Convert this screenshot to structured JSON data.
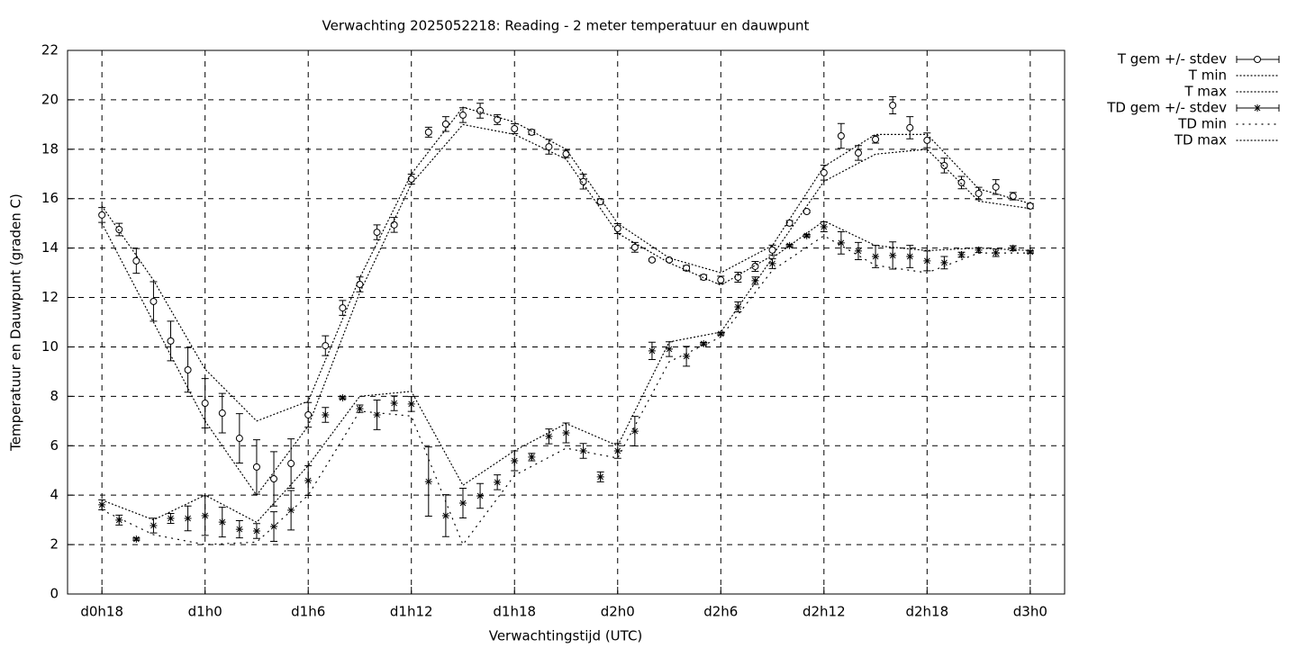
{
  "chart_data": {
    "type": "errorbar",
    "title": "Verwachting 2025052218: Reading - 2 meter temperatuur en dauwpunt",
    "xlabel": "Verwachtingstijd (UTC)",
    "ylabel": "Temperatuur en Dauwpunt (graden C)",
    "xlim": [
      16,
      74
    ],
    "ylim": [
      0,
      22
    ],
    "xticks": [
      {
        "value": 18,
        "label": "d0h18"
      },
      {
        "value": 24,
        "label": "d1h0"
      },
      {
        "value": 30,
        "label": "d1h6"
      },
      {
        "value": 36,
        "label": "d1h12"
      },
      {
        "value": 42,
        "label": "d1h18"
      },
      {
        "value": 48,
        "label": "d2h0"
      },
      {
        "value": 54,
        "label": "d2h6"
      },
      {
        "value": 60,
        "label": "d2h12"
      },
      {
        "value": 66,
        "label": "d2h18"
      },
      {
        "value": 72,
        "label": "d3h0"
      }
    ],
    "yticks": [
      0,
      2,
      4,
      6,
      8,
      10,
      12,
      14,
      16,
      18,
      20,
      22
    ],
    "grid": true,
    "legend": "outside-top-right",
    "series": [
      {
        "name": "T gem +/- stdev",
        "color": "#000000",
        "marker": "circle",
        "x": [
          18,
          19,
          20,
          21,
          22,
          23,
          24,
          25,
          26,
          27,
          28,
          29,
          30,
          31,
          32,
          33,
          34,
          35,
          36,
          37,
          38,
          39,
          40,
          41,
          42,
          43,
          44,
          45,
          46,
          47,
          48,
          49,
          50,
          51,
          52,
          53,
          54,
          55,
          56,
          57,
          58,
          59,
          60,
          61,
          62,
          63,
          64,
          65,
          66,
          67,
          68,
          69,
          70,
          71,
          72
        ],
        "values": [
          15.34,
          14.75,
          13.48,
          11.84,
          10.24,
          9.07,
          7.72,
          7.32,
          6.3,
          5.14,
          4.66,
          5.28,
          7.25,
          10.05,
          11.58,
          12.53,
          14.64,
          14.94,
          16.79,
          18.69,
          19.02,
          19.38,
          19.56,
          19.2,
          18.83,
          18.69,
          18.1,
          17.81,
          16.69,
          15.88,
          14.79,
          14.03,
          13.52,
          13.52,
          13.19,
          12.82,
          12.71,
          12.82,
          13.26,
          13.92,
          15.01,
          15.48,
          17.05,
          18.54,
          17.85,
          18.4,
          19.78,
          18.87,
          18.36,
          17.34,
          16.65,
          16.21,
          16.47,
          16.1,
          15.7
        ],
        "errors": [
          0.3,
          0.25,
          0.5,
          0.8,
          0.8,
          0.9,
          1.0,
          0.8,
          1.0,
          1.1,
          1.1,
          1.0,
          0.5,
          0.4,
          0.3,
          0.3,
          0.3,
          0.3,
          0.2,
          0.2,
          0.3,
          0.3,
          0.3,
          0.2,
          0.2,
          0.1,
          0.3,
          0.15,
          0.3,
          0.1,
          0.2,
          0.2,
          0.05,
          0.05,
          0.1,
          0.1,
          0.15,
          0.2,
          0.2,
          0.2,
          0.1,
          0.05,
          0.3,
          0.5,
          0.3,
          0.15,
          0.35,
          0.45,
          0.3,
          0.3,
          0.25,
          0.25,
          0.3,
          0.15,
          0.1
        ]
      },
      {
        "name": "T min",
        "color": "#000000",
        "dash": "1 3",
        "x": [
          18,
          21,
          24,
          27,
          30,
          33,
          36,
          39,
          42,
          45,
          48,
          51,
          54,
          57,
          60,
          63,
          66,
          69,
          72
        ],
        "values": [
          15.0,
          11.0,
          7.0,
          4.0,
          6.8,
          12.2,
          16.6,
          19.0,
          18.6,
          17.6,
          14.6,
          13.4,
          12.5,
          13.7,
          16.7,
          17.8,
          18.0,
          15.9,
          15.6
        ]
      },
      {
        "name": "T max",
        "color": "#000000",
        "dash": "1 3",
        "x": [
          18,
          21,
          24,
          27,
          30,
          33,
          36,
          39,
          42,
          45,
          48,
          51,
          54,
          57,
          60,
          63,
          66,
          69,
          72
        ],
        "values": [
          15.7,
          12.7,
          9.1,
          7.0,
          7.8,
          12.8,
          17.0,
          19.7,
          19.1,
          18.0,
          15.0,
          13.6,
          13.0,
          14.1,
          17.3,
          18.6,
          18.6,
          16.4,
          15.8
        ]
      },
      {
        "name": "TD gem +/- stdev",
        "color": "#000000",
        "marker": "asterisk",
        "x": [
          18,
          19,
          20,
          21,
          22,
          23,
          24,
          25,
          26,
          27,
          28,
          29,
          30,
          31,
          32,
          33,
          34,
          35,
          36,
          37,
          38,
          39,
          40,
          41,
          42,
          43,
          44,
          45,
          46,
          47,
          48,
          49,
          50,
          51,
          52,
          53,
          54,
          55,
          56,
          57,
          58,
          59,
          60,
          61,
          62,
          63,
          64,
          65,
          66,
          67,
          68,
          69,
          70,
          71,
          72
        ],
        "values": [
          3.61,
          2.99,
          2.22,
          2.77,
          3.06,
          3.06,
          3.17,
          2.91,
          2.62,
          2.55,
          2.73,
          3.39,
          4.59,
          7.25,
          7.94,
          7.5,
          7.25,
          7.72,
          7.69,
          4.55,
          3.17,
          3.68,
          3.97,
          4.52,
          5.39,
          5.54,
          6.38,
          6.52,
          5.79,
          4.74,
          5.79,
          6.59,
          9.84,
          9.91,
          9.62,
          10.13,
          10.53,
          11.62,
          12.68,
          13.37,
          14.1,
          14.5,
          14.86,
          14.21,
          13.88,
          13.66,
          13.7,
          13.66,
          13.48,
          13.41,
          13.73,
          13.92,
          13.81,
          13.99,
          13.84
        ],
        "errors": [
          0.2,
          0.2,
          0.05,
          0.3,
          0.2,
          0.5,
          0.8,
          0.6,
          0.35,
          0.3,
          0.6,
          0.8,
          0.6,
          0.3,
          0.05,
          0.15,
          0.6,
          0.3,
          0.3,
          1.4,
          0.85,
          0.6,
          0.5,
          0.3,
          0.4,
          0.15,
          0.3,
          0.4,
          0.3,
          0.2,
          0.3,
          0.6,
          0.35,
          0.3,
          0.4,
          0.05,
          0.05,
          0.2,
          0.15,
          0.2,
          0.05,
          0.05,
          0.2,
          0.45,
          0.35,
          0.45,
          0.55,
          0.45,
          0.4,
          0.25,
          0.1,
          0.1,
          0.15,
          0.1,
          0.05
        ]
      },
      {
        "name": "TD min",
        "color": "#000000",
        "dash": "1 6",
        "x": [
          18,
          21,
          24,
          27,
          30,
          33,
          36,
          39,
          42,
          45,
          48,
          51,
          54,
          57,
          60,
          63,
          66,
          69,
          72
        ],
        "values": [
          3.4,
          2.4,
          2.0,
          2.1,
          4.0,
          7.4,
          7.2,
          2.0,
          4.8,
          5.9,
          5.5,
          9.4,
          10.4,
          13.1,
          14.5,
          13.3,
          13.0,
          13.8,
          13.8
        ]
      },
      {
        "name": "TD max",
        "color": "#000000",
        "dash": "1 3",
        "x": [
          18,
          21,
          24,
          27,
          30,
          33,
          36,
          39,
          42,
          45,
          48,
          51,
          54,
          57,
          60,
          63,
          66,
          69,
          72
        ],
        "values": [
          3.8,
          3.0,
          4.0,
          2.9,
          5.2,
          8.0,
          8.2,
          4.4,
          5.8,
          6.9,
          6.0,
          10.2,
          10.6,
          13.6,
          15.1,
          14.1,
          13.9,
          14.0,
          13.9
        ]
      }
    ]
  }
}
